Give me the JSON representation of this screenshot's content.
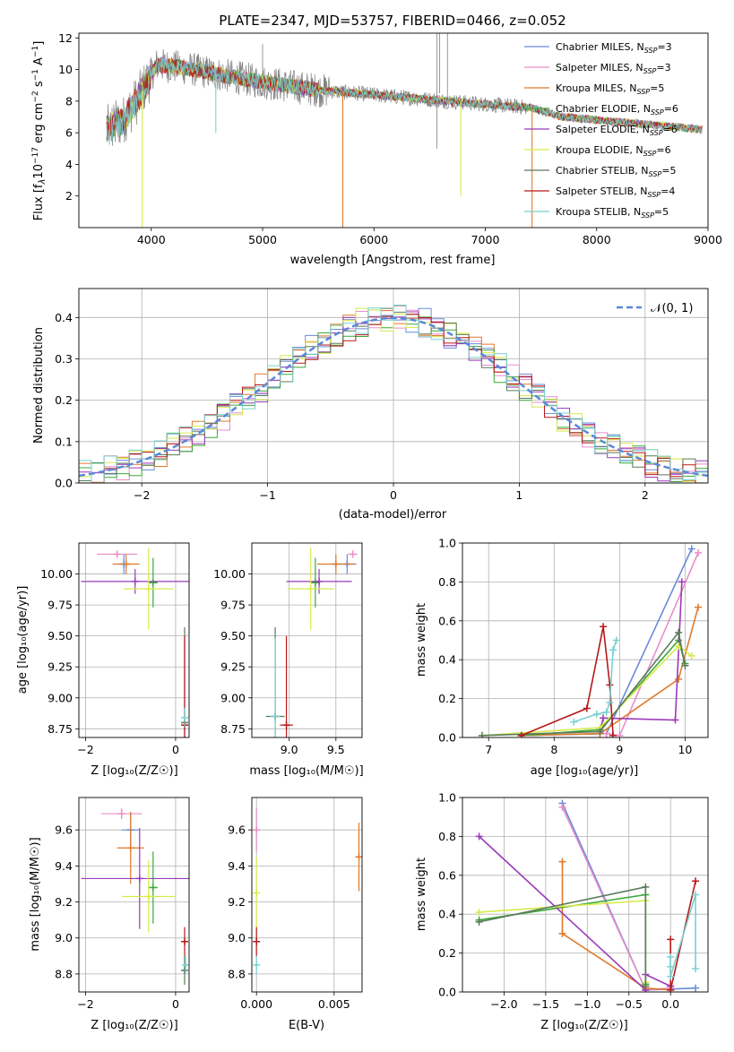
{
  "colors": {
    "Chabrier MILES": "#6a8ad8",
    "Salpeter MILES": "#e88ec8",
    "Kroupa MILES": "#e07a2a",
    "Chabrier ELODIE": "#3aa83a",
    "Salpeter ELODIE": "#9a3ab8",
    "Kroupa ELODIE": "#d8ea4a",
    "Chabrier STELIB": "#5a7a5a",
    "Salpeter STELIB": "#b81818",
    "Kroupa STELIB": "#7ad0d0",
    "normal": "#5a88d8",
    "obs": "#808080"
  },
  "chart_data": [
    {
      "id": "spectrum",
      "type": "line",
      "title": "PLATE=2347, MJD=53757, FIBERID=0466, z=0.052",
      "xlabel": "wavelength [Angstrom, rest frame]",
      "ylabel_parts": [
        "Flux [f",
        "λ",
        "10",
        "−17",
        " erg cm",
        "−2",
        " s",
        "−1",
        " A",
        "−1",
        "]"
      ],
      "xlim": [
        3350,
        9000
      ],
      "ylim": [
        0,
        12.3
      ],
      "xticks": [
        4000,
        5000,
        6000,
        7000,
        8000,
        9000
      ],
      "yticks": [
        2,
        4,
        6,
        8,
        10,
        12
      ],
      "legend": [
        {
          "name": "Chabrier MILES",
          "nssp": "3"
        },
        {
          "name": "Salpeter MILES",
          "nssp": "3"
        },
        {
          "name": "Kroupa MILES",
          "nssp": "5"
        },
        {
          "name": "Chabrier ELODIE",
          "nssp": "6"
        },
        {
          "name": "Salpeter ELODIE",
          "nssp": "6"
        },
        {
          "name": "Kroupa ELODIE",
          "nssp": "6"
        },
        {
          "name": "Chabrier STELIB",
          "nssp": "5"
        },
        {
          "name": "Salpeter STELIB",
          "nssp": "4"
        },
        {
          "name": "Kroupa STELIB",
          "nssp": "5"
        }
      ],
      "legend_nssp_label": "N",
      "legend_nssp_sub": "SSP",
      "continuum": [
        [
          3600,
          6.2
        ],
        [
          3750,
          6.8
        ],
        [
          3900,
          8.4
        ],
        [
          4050,
          10.3
        ],
        [
          4300,
          10.1
        ],
        [
          4600,
          9.7
        ],
        [
          5000,
          9.2
        ],
        [
          5500,
          8.7
        ],
        [
          6000,
          8.4
        ],
        [
          6500,
          8.1
        ],
        [
          7000,
          7.8
        ],
        [
          7400,
          7.6
        ],
        [
          7700,
          7.0
        ],
        [
          8000,
          6.8
        ],
        [
          8500,
          6.5
        ],
        [
          8950,
          6.2
        ]
      ]
    },
    {
      "id": "residuals",
      "type": "bar",
      "xlabel": "(data-model)/error",
      "ylabel": "Normed distribution",
      "xlim": [
        -2.5,
        2.5
      ],
      "ylim": [
        0,
        0.47
      ],
      "xticks": [
        -2,
        -1,
        0,
        1,
        2
      ],
      "xtick_labels": [
        "−2",
        "−1",
        "0",
        "1",
        "2"
      ],
      "yticks": [
        0.0,
        0.1,
        0.2,
        0.3,
        0.4
      ],
      "ytick_labels": [
        "0.0",
        "0.1",
        "0.2",
        "0.3",
        "0.4"
      ],
      "legend": "𝒩(0, 1)",
      "bin_width": 0.1
    },
    {
      "id": "age_vs_Z",
      "type": "scatter",
      "xlabel": "Z [log₁₀(Z/Z☉)]",
      "ylabel": "age  [log₁₀(age/yr)]",
      "xlim": [
        -2.15,
        0.3
      ],
      "ylim": [
        8.68,
        10.25
      ],
      "xticks": [
        -2,
        0
      ],
      "xtick_labels": [
        "−2",
        "0"
      ],
      "yticks": [
        8.75,
        9.0,
        9.25,
        9.5,
        9.75,
        10.0
      ],
      "ytick_labels": [
        "8.75",
        "9.00",
        "9.25",
        "9.50",
        "9.75",
        "10.00"
      ],
      "points": [
        {
          "model": "Chabrier MILES",
          "x": -1.15,
          "y": 10.08,
          "xerr": 0.15,
          "yerr": 0.08
        },
        {
          "model": "Salpeter MILES",
          "x": -1.3,
          "y": 10.16,
          "xerr": 0.45,
          "yerr": 0.03
        },
        {
          "model": "Kroupa MILES",
          "x": -1.1,
          "y": 10.08,
          "xerr": 0.3,
          "yerr": 0.08
        },
        {
          "model": "Chabrier ELODIE",
          "x": -0.5,
          "y": 9.93,
          "xerr": 0.1,
          "yerr": 0.2
        },
        {
          "model": "Salpeter ELODIE",
          "x": -0.9,
          "y": 9.94,
          "xerr": 1.2,
          "yerr": 0.1
        },
        {
          "model": "Kroupa ELODIE",
          "x": -0.6,
          "y": 9.88,
          "xerr": 0.55,
          "yerr": 0.33
        },
        {
          "model": "Chabrier STELIB",
          "x": 0.2,
          "y": 8.8,
          "xerr": 0.02,
          "yerr": 0.77
        },
        {
          "model": "Salpeter STELIB",
          "x": 0.2,
          "y": 8.78,
          "xerr": 0.05,
          "yerr": 0.72
        },
        {
          "model": "Kroupa STELIB",
          "x": 0.2,
          "y": 8.84,
          "xerr": 0.04,
          "yerr": 0.08
        }
      ]
    },
    {
      "id": "age_vs_mass",
      "type": "scatter",
      "xlabel": "mass [log₁₀(M/M☉)]",
      "xlim": [
        8.6,
        9.78
      ],
      "ylim": [
        8.68,
        10.25
      ],
      "xticks": [
        9.0,
        9.5
      ],
      "xtick_labels": [
        "9.0",
        "9.5"
      ],
      "yticks": [
        8.75,
        9.0,
        9.25,
        9.5,
        9.75,
        10.0
      ],
      "ytick_labels": [
        "8.75",
        "9.00",
        "9.25",
        "9.50",
        "9.75",
        "10.00"
      ],
      "points": [
        {
          "model": "Chabrier MILES",
          "x": 9.62,
          "y": 10.08,
          "xerr": 0.1,
          "yerr": 0.08
        },
        {
          "model": "Salpeter MILES",
          "x": 9.68,
          "y": 10.16,
          "xerr": 0.05,
          "yerr": 0.03
        },
        {
          "model": "Kroupa MILES",
          "x": 9.5,
          "y": 10.08,
          "xerr": 0.2,
          "yerr": 0.08
        },
        {
          "model": "Chabrier ELODIE",
          "x": 9.28,
          "y": 9.93,
          "xerr": 0.05,
          "yerr": 0.2
        },
        {
          "model": "Salpeter ELODIE",
          "x": 9.32,
          "y": 9.94,
          "xerr": 0.35,
          "yerr": 0.1
        },
        {
          "model": "Kroupa ELODIE",
          "x": 9.23,
          "y": 9.88,
          "xerr": 0.25,
          "yerr": 0.33
        },
        {
          "model": "Chabrier STELIB",
          "x": 8.85,
          "y": 8.85,
          "xerr": 0.1,
          "yerr": 0.72
        },
        {
          "model": "Salpeter STELIB",
          "x": 8.97,
          "y": 8.78,
          "xerr": 0.07,
          "yerr": 0.72
        },
        {
          "model": "Kroupa STELIB",
          "x": 8.85,
          "y": 8.85,
          "xerr": 0.05,
          "yerr": 0.63
        }
      ]
    },
    {
      "id": "weight_vs_age",
      "type": "line",
      "xlabel": "age  [log₁₀(age/yr)]",
      "ylabel": "mass weight",
      "xlim": [
        6.6,
        10.35
      ],
      "ylim": [
        0,
        1
      ],
      "xticks": [
        7,
        8,
        9,
        10
      ],
      "xtick_labels": [
        "7",
        "8",
        "9",
        "10"
      ],
      "yticks": [
        0.0,
        0.2,
        0.4,
        0.6,
        0.8,
        1.0
      ],
      "ytick_labels": [
        "0.0",
        "0.2",
        "0.4",
        "0.6",
        "0.8",
        "1.0"
      ],
      "series": [
        {
          "model": "Chabrier MILES",
          "points": [
            [
              7.5,
              0.01
            ],
            [
              8.8,
              0.02
            ],
            [
              10.1,
              0.97
            ]
          ]
        },
        {
          "model": "Salpeter MILES",
          "points": [
            [
              8.8,
              0.02
            ],
            [
              9.0,
              0.01
            ],
            [
              10.2,
              0.95
            ]
          ]
        },
        {
          "model": "Kroupa MILES",
          "points": [
            [
              7.5,
              0.01
            ],
            [
              8.7,
              0.02
            ],
            [
              9.9,
              0.3
            ],
            [
              10.2,
              0.67
            ]
          ]
        },
        {
          "model": "Chabrier ELODIE",
          "points": [
            [
              7.5,
              0.01
            ],
            [
              8.7,
              0.04
            ],
            [
              9.9,
              0.5
            ],
            [
              10.0,
              0.38
            ]
          ]
        },
        {
          "model": "Salpeter ELODIE",
          "points": [
            [
              8.7,
              0.03
            ],
            [
              8.75,
              0.1
            ],
            [
              9.85,
              0.09
            ],
            [
              9.95,
              0.8
            ]
          ]
        },
        {
          "model": "Kroupa ELODIE",
          "points": [
            [
              6.9,
              0.01
            ],
            [
              8.7,
              0.05
            ],
            [
              9.9,
              0.47
            ],
            [
              10.1,
              0.42
            ]
          ]
        },
        {
          "model": "Chabrier STELIB",
          "points": [
            [
              6.9,
              0.01
            ],
            [
              8.7,
              0.03
            ],
            [
              9.9,
              0.54
            ],
            [
              10.0,
              0.37
            ]
          ]
        },
        {
          "model": "Salpeter STELIB",
          "points": [
            [
              7.5,
              0.01
            ],
            [
              8.5,
              0.15
            ],
            [
              8.75,
              0.57
            ],
            [
              8.85,
              0.27
            ],
            [
              8.9,
              0.01
            ]
          ]
        },
        {
          "model": "Kroupa STELIB",
          "points": [
            [
              8.3,
              0.08
            ],
            [
              8.65,
              0.12
            ],
            [
              8.8,
              0.13
            ],
            [
              8.85,
              0.18
            ],
            [
              8.9,
              0.45
            ],
            [
              8.95,
              0.5
            ]
          ]
        }
      ]
    },
    {
      "id": "mass_vs_Z",
      "type": "scatter",
      "xlabel": "Z [log₁₀(Z/Z☉)]",
      "ylabel": "mass [log₁₀(M/M☉)]",
      "xlim": [
        -2.15,
        0.3
      ],
      "ylim": [
        8.7,
        9.78
      ],
      "xticks": [
        -2,
        0
      ],
      "xtick_labels": [
        "−2",
        "0"
      ],
      "yticks": [
        8.8,
        9.0,
        9.2,
        9.4,
        9.6
      ],
      "ytick_labels": [
        "8.8",
        "9.0",
        "9.2",
        "9.4",
        "9.6"
      ],
      "points": [
        {
          "model": "Chabrier MILES",
          "x": -1.0,
          "y": 9.6,
          "xerr": 0.2,
          "yerr": 0.1
        },
        {
          "model": "Salpeter MILES",
          "x": -1.2,
          "y": 9.69,
          "xerr": 0.45,
          "yerr": 0.03
        },
        {
          "model": "Kroupa MILES",
          "x": -1.0,
          "y": 9.5,
          "xerr": 0.3,
          "yerr": 0.2
        },
        {
          "model": "Chabrier ELODIE",
          "x": -0.5,
          "y": 9.28,
          "xerr": 0.1,
          "yerr": 0.2
        },
        {
          "model": "Salpeter ELODIE",
          "x": -0.8,
          "y": 9.33,
          "xerr": 1.3,
          "yerr": 0.28
        },
        {
          "model": "Kroupa ELODIE",
          "x": -0.6,
          "y": 9.23,
          "xerr": 0.6,
          "yerr": 0.2
        },
        {
          "model": "Chabrier STELIB",
          "x": 0.2,
          "y": 8.82,
          "xerr": 0.05,
          "yerr": 0.08
        },
        {
          "model": "Salpeter STELIB",
          "x": 0.2,
          "y": 8.98,
          "xerr": 0.05,
          "yerr": 0.08
        },
        {
          "model": "Kroupa STELIB",
          "x": 0.22,
          "y": 8.85,
          "xerr": 0.04,
          "yerr": 0.05
        }
      ]
    },
    {
      "id": "mass_vs_ebv",
      "type": "scatter",
      "xlabel": "E(B-V)",
      "xlim": [
        -0.0003,
        0.0068
      ],
      "ylim": [
        8.7,
        9.78
      ],
      "xticks": [
        0.0,
        0.005
      ],
      "xtick_labels": [
        "0.000",
        "0.005"
      ],
      "yticks": [
        8.8,
        9.0,
        9.2,
        9.4,
        9.6
      ],
      "ytick_labels": [
        "8.8",
        "9.0",
        "9.2",
        "9.4",
        "9.6"
      ],
      "points": [
        {
          "model": "Salpeter MILES",
          "x": 0.0,
          "y": 9.6,
          "xerr": 0.0,
          "yerr": 0.12
        },
        {
          "model": "Kroupa MILES",
          "x": 0.0066,
          "y": 9.45,
          "xerr": 0.0,
          "yerr": 0.19
        },
        {
          "model": "Kroupa ELODIE",
          "x": 0.0,
          "y": 9.25,
          "xerr": 0.0,
          "yerr": 0.2
        },
        {
          "model": "Salpeter STELIB",
          "x": 0.0,
          "y": 8.98,
          "xerr": 0.0,
          "yerr": 0.08
        },
        {
          "model": "Kroupa STELIB",
          "x": 0.0,
          "y": 8.85,
          "xerr": 0.0,
          "yerr": 0.05
        }
      ]
    },
    {
      "id": "weight_vs_Z",
      "type": "line",
      "xlabel": "Z [log₁₀(Z/Z☉)]",
      "ylabel": "mass weight",
      "xlim": [
        -2.5,
        0.45
      ],
      "ylim": [
        0,
        1
      ],
      "xticks": [
        -2.0,
        -1.5,
        -1.0,
        -0.5,
        0.0
      ],
      "xtick_labels": [
        "−2.0",
        "−1.5",
        "−1.0",
        "−0.5",
        "0.0"
      ],
      "yticks": [
        0.0,
        0.2,
        0.4,
        0.6,
        0.8,
        1.0
      ],
      "ytick_labels": [
        "0.0",
        "0.2",
        "0.4",
        "0.6",
        "0.8",
        "1.0"
      ],
      "series": [
        {
          "model": "Chabrier MILES",
          "points": [
            [
              -1.3,
              0.97
            ],
            [
              -0.3,
              0.01
            ],
            [
              0.3,
              0.02
            ]
          ]
        },
        {
          "model": "Salpeter MILES",
          "points": [
            [
              -1.3,
              0.95
            ],
            [
              -0.3,
              0.01
            ],
            [
              0.0,
              0.02
            ]
          ]
        },
        {
          "model": "Kroupa MILES",
          "points": [
            [
              -1.3,
              0.67
            ],
            [
              -1.3,
              0.3
            ],
            [
              -0.3,
              0.02
            ],
            [
              0.0,
              0.01
            ]
          ]
        },
        {
          "model": "Chabrier ELODIE",
          "points": [
            [
              -2.3,
              0.37
            ],
            [
              -0.3,
              0.5
            ],
            [
              -0.3,
              0.04
            ]
          ]
        },
        {
          "model": "Salpeter ELODIE",
          "points": [
            [
              -2.3,
              0.8
            ],
            [
              -0.3,
              0.01
            ],
            [
              -0.3,
              0.09
            ],
            [
              0.0,
              0.03
            ]
          ]
        },
        {
          "model": "Kroupa ELODIE",
          "points": [
            [
              -2.3,
              0.41
            ],
            [
              -0.3,
              0.47
            ],
            [
              -0.3,
              0.05
            ]
          ]
        },
        {
          "model": "Chabrier STELIB",
          "points": [
            [
              -2.3,
              0.36
            ],
            [
              -0.3,
              0.54
            ],
            [
              -0.3,
              0.03
            ]
          ]
        },
        {
          "model": "Salpeter STELIB",
          "points": [
            [
              0.0,
              0.27
            ],
            [
              0.0,
              0.01
            ],
            [
              0.3,
              0.57
            ]
          ]
        },
        {
          "model": "Kroupa STELIB",
          "points": [
            [
              0.0,
              0.18
            ],
            [
              0.0,
              0.13
            ],
            [
              0.0,
              0.08
            ],
            [
              0.3,
              0.5
            ],
            [
              0.3,
              0.12
            ]
          ]
        }
      ]
    }
  ]
}
